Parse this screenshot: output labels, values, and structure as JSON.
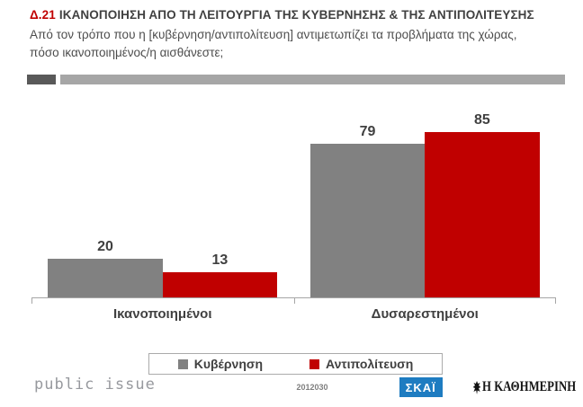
{
  "header": {
    "code": "Δ.21",
    "title": "ΙΚΑΝΟΠΟΙΗΣΗ ΑΠΟ ΤΗ ΛΕΙΤΟΥΡΓΙΑ ΤΗΣ ΚΥΒΕΡΝΗΣΗΣ & ΤΗΣ ΑΝΤΙΠΟΛΙΤΕΥΣΗΣ",
    "subtitle": "Από τον τρόπο που η [κυβέρνηση/αντιπολίτευση] αντιμετωπίζει τα προβλήματα της χώρας, πόσο ικανοποιημένος/η αισθάνεστε;"
  },
  "chart_data": {
    "type": "bar",
    "categories": [
      "Ικανοποιημένοι",
      "Δυσαρεστημένοι"
    ],
    "series": [
      {
        "name": "Κυβέρνηση",
        "color": "#818181",
        "values": [
          20,
          79
        ]
      },
      {
        "name": "Αντιπολίτευση",
        "color": "#c00000",
        "values": [
          13,
          85
        ]
      }
    ],
    "ylim": [
      0,
      100
    ],
    "grid": false,
    "data_labels": true,
    "legend_position": "bottom"
  },
  "footer": {
    "survey_id": "2012030",
    "brand": "public issue",
    "logo_skai": "ΣΚΑΪ",
    "logo_kathimerini": "Η ΚΑΘΗΜΕΡΙΝΗ"
  },
  "colors": {
    "accent_red": "#c00000",
    "bar_gray": "#818181",
    "separator_dark": "#595959",
    "separator_light": "#a6a6a6",
    "title_text": "#404040",
    "skai_blue": "#1e7cc1"
  }
}
